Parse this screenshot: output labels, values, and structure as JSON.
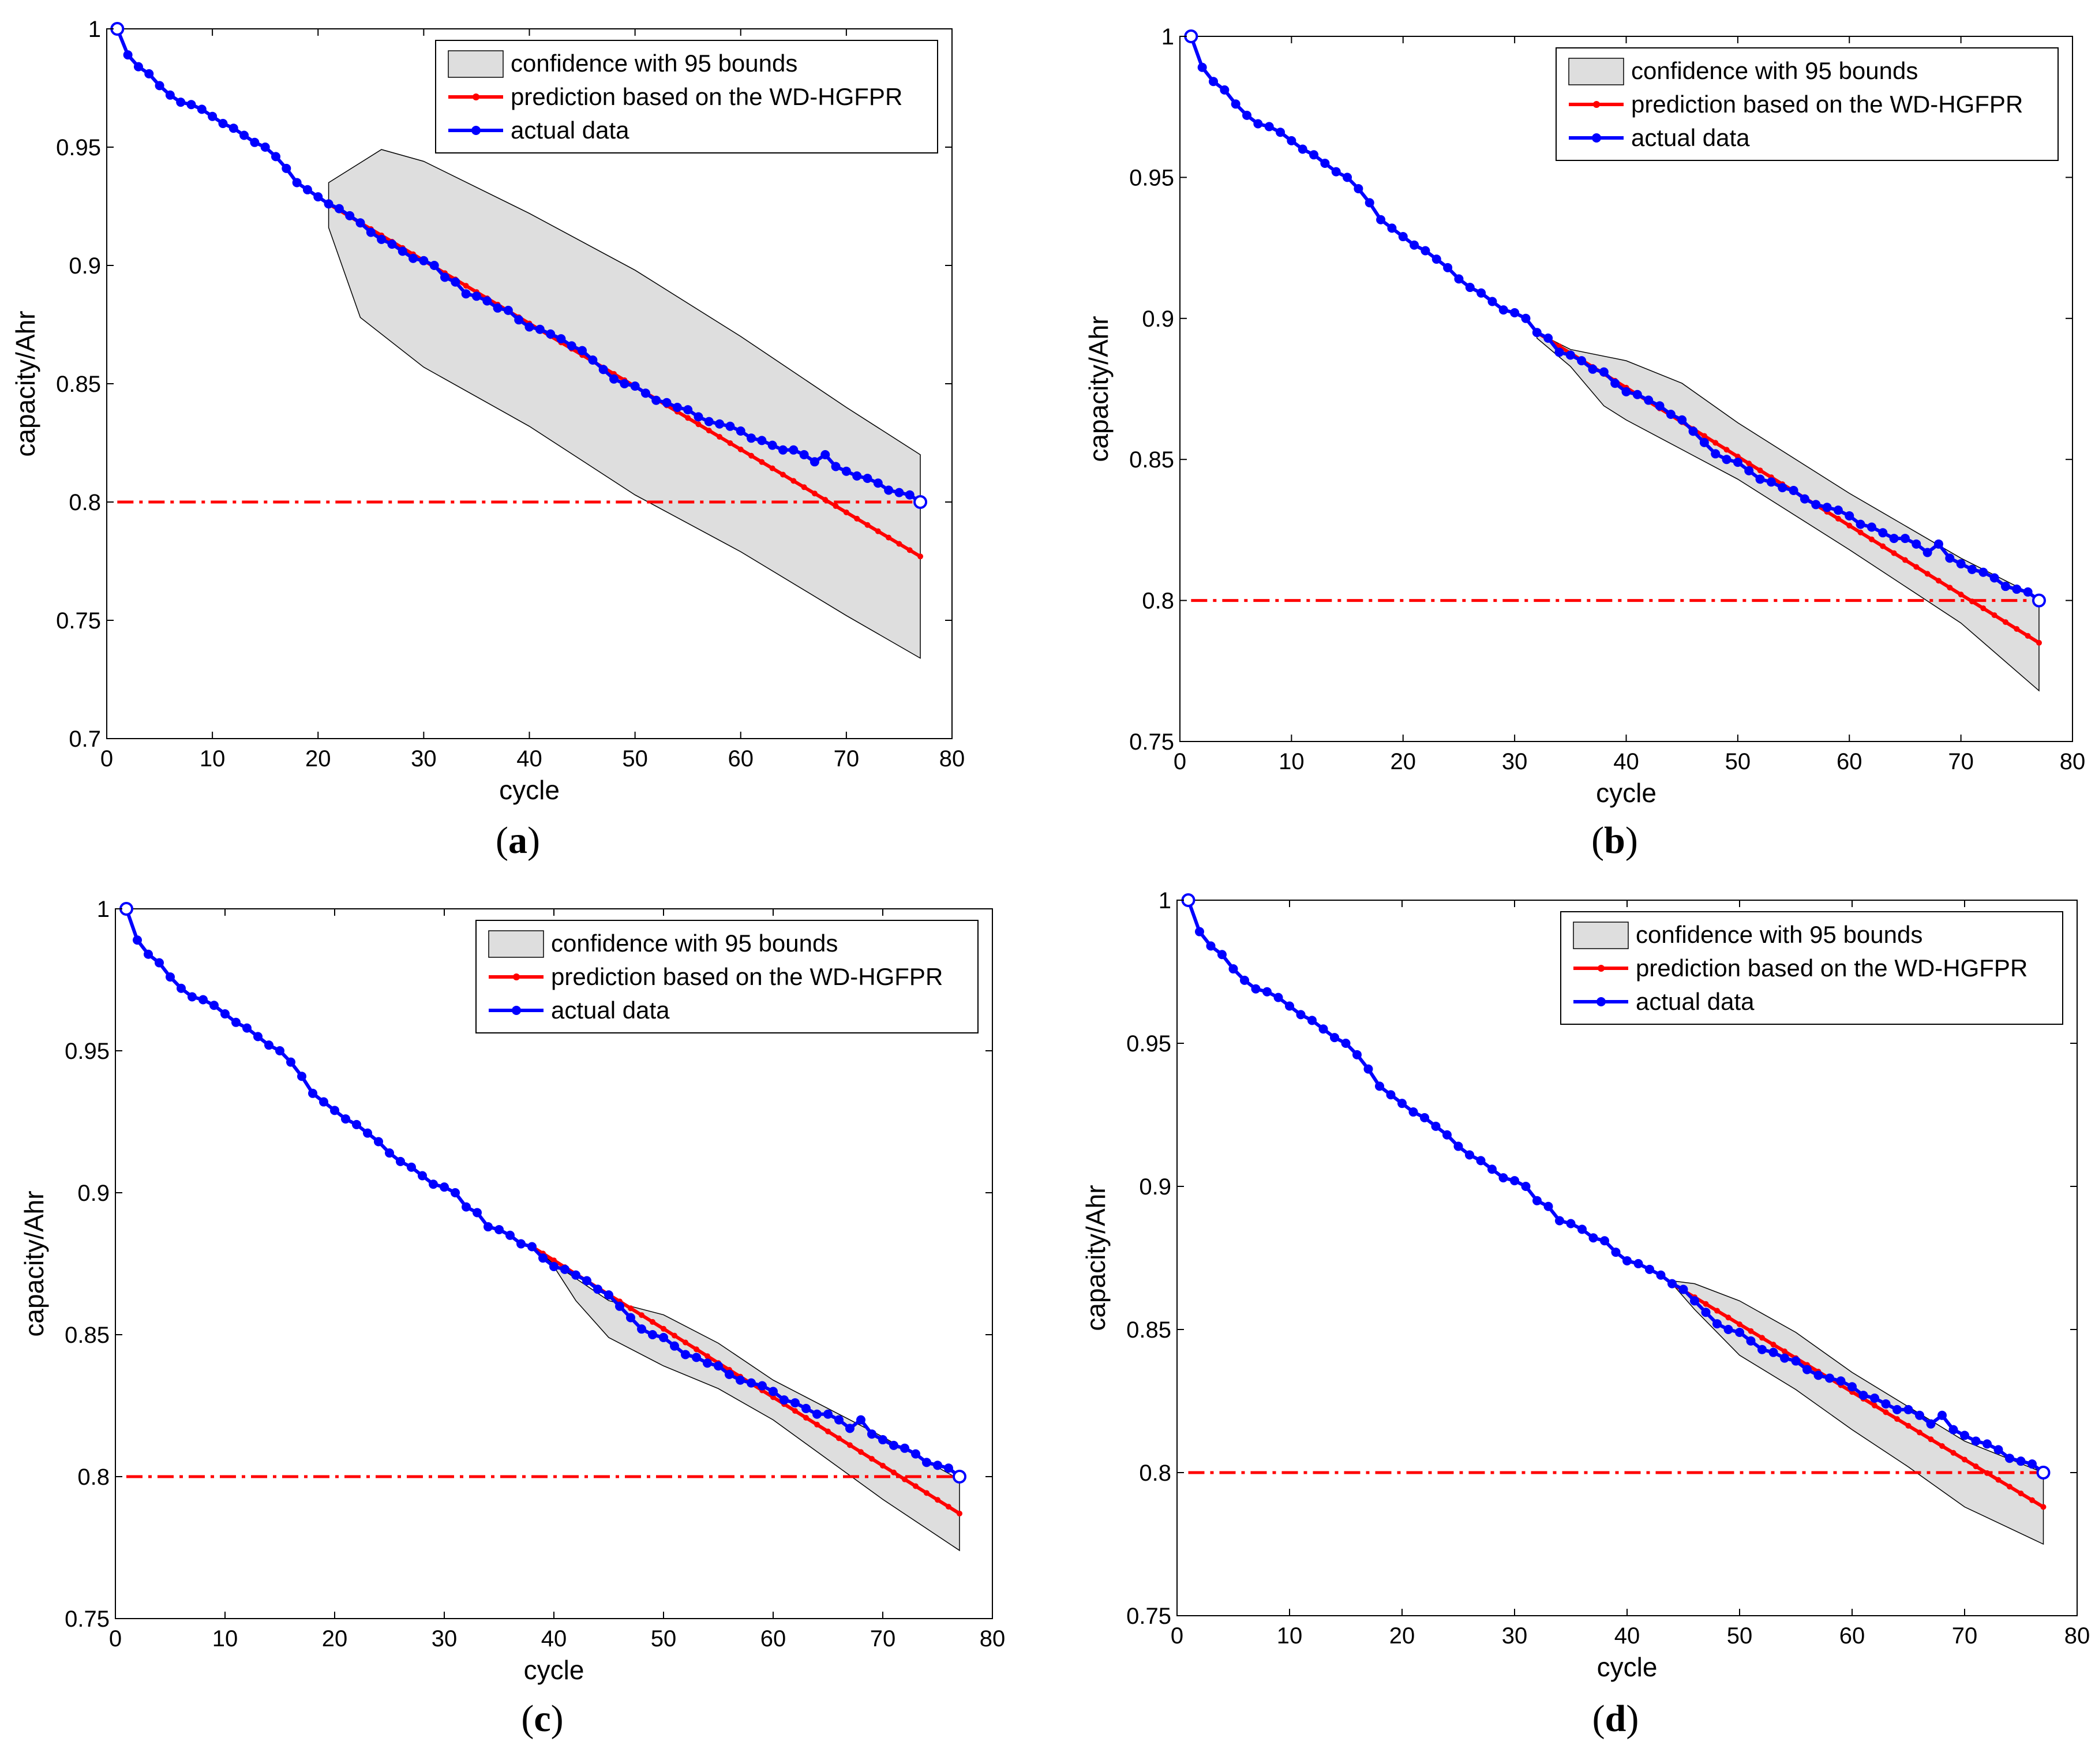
{
  "figure": {
    "panels": [
      "(a)",
      "(b)",
      "(c)",
      "(d)"
    ]
  },
  "colors": {
    "prediction": "#ff0000",
    "actual": "#0000ff",
    "band_fill": "#dedede",
    "band_stroke": "#000000",
    "threshold": "#ff0000"
  },
  "chart_data": [
    {
      "panel": "(a)",
      "type": "line",
      "xlabel": "cycle",
      "ylabel": "capacity/Ahr",
      "xlim": [
        0,
        80
      ],
      "ylim": [
        0.7,
        1
      ],
      "xticks": [
        "0",
        "10",
        "20",
        "30",
        "40",
        "50",
        "60",
        "70",
        "80"
      ],
      "yticks": [
        "0.7",
        "0.75",
        "0.8",
        "0.85",
        "0.9",
        "0.95",
        "1"
      ],
      "legend": [
        "confidence with 95 bounds",
        "prediction based on the WD-HGFPR",
        "actual data"
      ],
      "legend_position": "top-right",
      "threshold": 0.8,
      "prediction_start": 21,
      "prediction_end_value": 0.777,
      "band_upper": [
        [
          21,
          0.935
        ],
        [
          26,
          0.949
        ],
        [
          30,
          0.944
        ],
        [
          40,
          0.922
        ],
        [
          50,
          0.898
        ],
        [
          60,
          0.87
        ],
        [
          70,
          0.84
        ],
        [
          77,
          0.82
        ]
      ],
      "band_lower": [
        [
          21,
          0.916
        ],
        [
          24,
          0.878
        ],
        [
          30,
          0.857
        ],
        [
          40,
          0.832
        ],
        [
          50,
          0.803
        ],
        [
          60,
          0.779
        ],
        [
          70,
          0.752
        ],
        [
          77,
          0.734
        ]
      ]
    },
    {
      "panel": "(b)",
      "type": "line",
      "xlabel": "cycle",
      "ylabel": "capacity/Ahr",
      "xlim": [
        0,
        80
      ],
      "ylim": [
        0.75,
        1
      ],
      "xticks": [
        "0",
        "10",
        "20",
        "30",
        "40",
        "50",
        "60",
        "70",
        "80"
      ],
      "yticks": [
        "0.75",
        "0.8",
        "0.85",
        "0.9",
        "0.95",
        "1"
      ],
      "legend": [
        "confidence with 95 bounds",
        "prediction based on the WD-HGFPR",
        "actual data"
      ],
      "legend_position": "top-right",
      "threshold": 0.8,
      "prediction_start": 32,
      "prediction_end_value": 0.785,
      "band_upper": [
        [
          32,
          0.895
        ],
        [
          35,
          0.889
        ],
        [
          40,
          0.885
        ],
        [
          45,
          0.877
        ],
        [
          50,
          0.863
        ],
        [
          60,
          0.838
        ],
        [
          70,
          0.815
        ],
        [
          77,
          0.801
        ]
      ],
      "band_lower": [
        [
          32,
          0.893
        ],
        [
          35,
          0.883
        ],
        [
          38,
          0.869
        ],
        [
          40,
          0.864
        ],
        [
          50,
          0.843
        ],
        [
          60,
          0.818
        ],
        [
          70,
          0.792
        ],
        [
          77,
          0.768
        ]
      ]
    },
    {
      "panel": "(c)",
      "type": "line",
      "xlabel": "cycle",
      "ylabel": "capacity/Ahr",
      "xlim": [
        0,
        80
      ],
      "ylim": [
        0.75,
        1
      ],
      "xticks": [
        "0",
        "10",
        "20",
        "30",
        "40",
        "50",
        "60",
        "70",
        "80"
      ],
      "yticks": [
        "0.75",
        "0.8",
        "0.85",
        "0.9",
        "0.95",
        "1"
      ],
      "legend": [
        "confidence with 95 bounds",
        "prediction based on the WD-HGFPR",
        "actual data"
      ],
      "legend_position": "top-right",
      "threshold": 0.8,
      "prediction_start": 38,
      "prediction_end_value": 0.787,
      "band_upper": [
        [
          38,
          0.881
        ],
        [
          40,
          0.875
        ],
        [
          45,
          0.862
        ],
        [
          50,
          0.857
        ],
        [
          55,
          0.847
        ],
        [
          60,
          0.834
        ],
        [
          65,
          0.824
        ],
        [
          70,
          0.814
        ],
        [
          77,
          0.799
        ]
      ],
      "band_lower": [
        [
          38,
          0.881
        ],
        [
          40,
          0.874
        ],
        [
          42,
          0.862
        ],
        [
          45,
          0.849
        ],
        [
          50,
          0.839
        ],
        [
          55,
          0.831
        ],
        [
          60,
          0.82
        ],
        [
          65,
          0.806
        ],
        [
          70,
          0.792
        ],
        [
          77,
          0.774
        ]
      ]
    },
    {
      "panel": "(d)",
      "type": "line",
      "xlabel": "cycle",
      "ylabel": "capacity/Ahr",
      "xlim": [
        0,
        80
      ],
      "ylim": [
        0.75,
        1
      ],
      "xticks": [
        "0",
        "10",
        "20",
        "30",
        "40",
        "50",
        "60",
        "70",
        "80"
      ],
      "yticks": [
        "0.75",
        "0.8",
        "0.85",
        "0.9",
        "0.95",
        "1"
      ],
      "legend": [
        "confidence with 95 bounds",
        "prediction based on the WD-HGFPR",
        "actual data"
      ],
      "legend_position": "top-right",
      "threshold": 0.8,
      "prediction_start": 44,
      "prediction_end_value": 0.788,
      "band_upper": [
        [
          44,
          0.867
        ],
        [
          46,
          0.866
        ],
        [
          50,
          0.86
        ],
        [
          55,
          0.849
        ],
        [
          60,
          0.835
        ],
        [
          65,
          0.823
        ],
        [
          70,
          0.811
        ],
        [
          77,
          0.8
        ]
      ],
      "band_lower": [
        [
          44,
          0.866
        ],
        [
          46,
          0.857
        ],
        [
          50,
          0.841
        ],
        [
          55,
          0.829
        ],
        [
          60,
          0.815
        ],
        [
          65,
          0.802
        ],
        [
          70,
          0.788
        ],
        [
          77,
          0.775
        ]
      ]
    }
  ],
  "actual_data": {
    "x": [
      1,
      2,
      3,
      4,
      5,
      6,
      7,
      8,
      9,
      10,
      11,
      12,
      13,
      14,
      15,
      16,
      17,
      18,
      19,
      20,
      21,
      22,
      23,
      24,
      25,
      26,
      27,
      28,
      29,
      30,
      31,
      32,
      33,
      34,
      35,
      36,
      37,
      38,
      39,
      40,
      41,
      42,
      43,
      44,
      45,
      46,
      47,
      48,
      49,
      50,
      51,
      52,
      53,
      54,
      55,
      56,
      57,
      58,
      59,
      60,
      61,
      62,
      63,
      64,
      65,
      66,
      67,
      68,
      69,
      70,
      71,
      72,
      73,
      74,
      75,
      76,
      77
    ],
    "y": [
      1.0,
      0.989,
      0.984,
      0.981,
      0.976,
      0.972,
      0.969,
      0.968,
      0.966,
      0.963,
      0.96,
      0.958,
      0.955,
      0.952,
      0.95,
      0.946,
      0.941,
      0.935,
      0.932,
      0.929,
      0.926,
      0.924,
      0.921,
      0.918,
      0.914,
      0.911,
      0.909,
      0.906,
      0.903,
      0.902,
      0.9,
      0.895,
      0.893,
      0.888,
      0.887,
      0.885,
      0.882,
      0.881,
      0.877,
      0.874,
      0.873,
      0.871,
      0.869,
      0.866,
      0.864,
      0.86,
      0.856,
      0.852,
      0.85,
      0.849,
      0.846,
      0.843,
      0.842,
      0.84,
      0.839,
      0.836,
      0.834,
      0.833,
      0.832,
      0.83,
      0.827,
      0.826,
      0.824,
      0.822,
      0.822,
      0.82,
      0.817,
      0.82,
      0.815,
      0.813,
      0.811,
      0.81,
      0.808,
      0.805,
      0.804,
      0.803,
      0.8
    ]
  }
}
